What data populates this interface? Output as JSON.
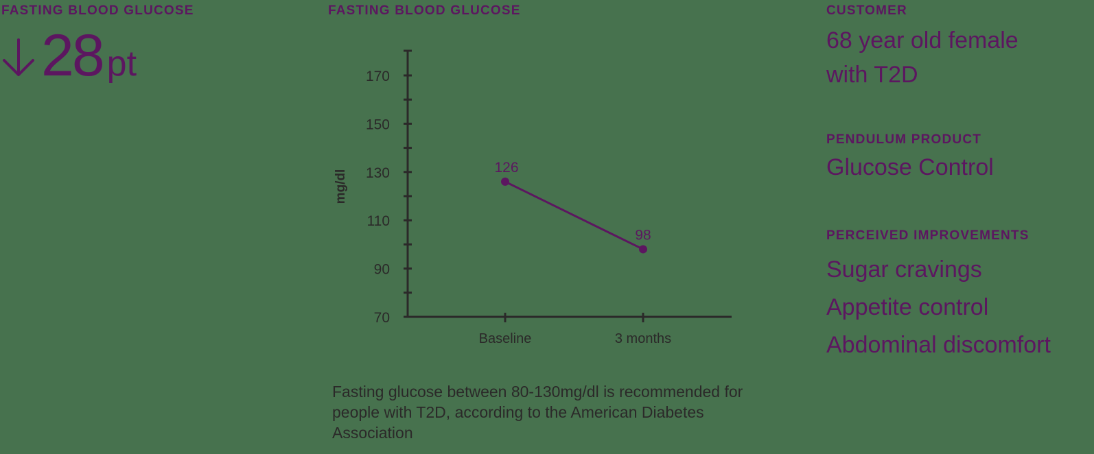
{
  "colors": {
    "background": "#47724e",
    "accent": "#5c1660",
    "axis": "#2b2929",
    "body_text": "#2b2929"
  },
  "left_panel": {
    "label": "FASTING BLOOD GLUCOSE",
    "change_icon": "arrow-down-icon",
    "change_value": "28",
    "change_unit": "pt"
  },
  "center_panel": {
    "label": "FASTING BLOOD GLUCOSE",
    "note": "Fasting glucose between 80-130mg/dl is recommended for people with T2D, according to the American Diabetes Association"
  },
  "right_panel": {
    "customer_label": "CUSTOMER",
    "customer_line1": "68 year old female",
    "customer_line2": "with T2D",
    "product_label": "PENDULUM PRODUCT",
    "product_value": "Glucose Control",
    "improvements_label": "PERCEIVED IMPROVEMENTS",
    "improvements": [
      "Sugar cravings",
      "Appetite control",
      "Abdominal discomfort"
    ]
  },
  "chart_data": {
    "type": "line",
    "title": "FASTING BLOOD GLUCOSE",
    "categories": [
      "Baseline",
      "3 months"
    ],
    "values": [
      126,
      98
    ],
    "data_labels": [
      "126",
      "98"
    ],
    "xlabel": "",
    "ylabel": "mg/dl",
    "ylim": [
      70,
      180
    ],
    "yticks": [
      70,
      90,
      110,
      130,
      150,
      170
    ],
    "minor_yticks": [
      80,
      100,
      120,
      140,
      160
    ],
    "grid": false,
    "legend": null,
    "series_color": "#5c1660"
  }
}
